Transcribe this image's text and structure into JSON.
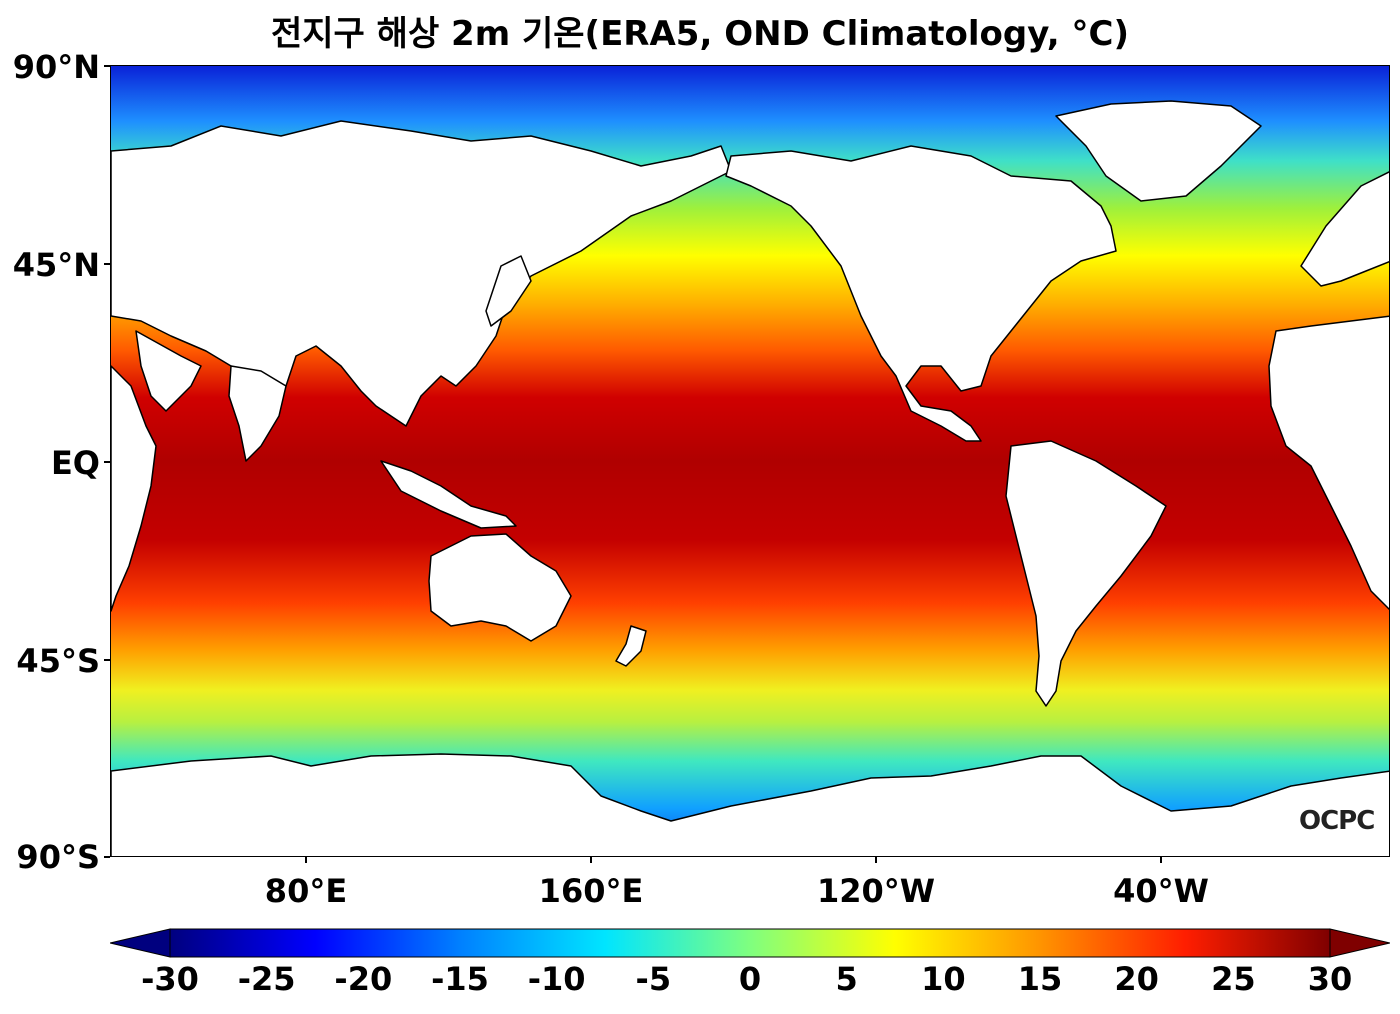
{
  "title": "전지구 해상 2m 기온(ERA5, OND Climatology, °C)",
  "logo_text": "OCPC",
  "y_axis_labels": [
    "90°N",
    "45°N",
    "EQ",
    "45°S",
    "90°S"
  ],
  "x_axis_labels": [
    "80°E",
    "160°E",
    "120°W",
    "40°W"
  ],
  "colorbar": {
    "ticks": [
      "-30",
      "-25",
      "-20",
      "-15",
      "-10",
      "-5",
      "0",
      "5",
      "10",
      "15",
      "20",
      "25",
      "30"
    ],
    "min": -30,
    "max": 30,
    "extend": "both",
    "colors": [
      "#00007f",
      "#0000ff",
      "#0080ff",
      "#00e5ff",
      "#7fff7f",
      "#ffff00",
      "#ff9400",
      "#ff1e00",
      "#7f0000"
    ]
  },
  "colors": {
    "land": "#ffffff",
    "coast": "#000000"
  }
}
